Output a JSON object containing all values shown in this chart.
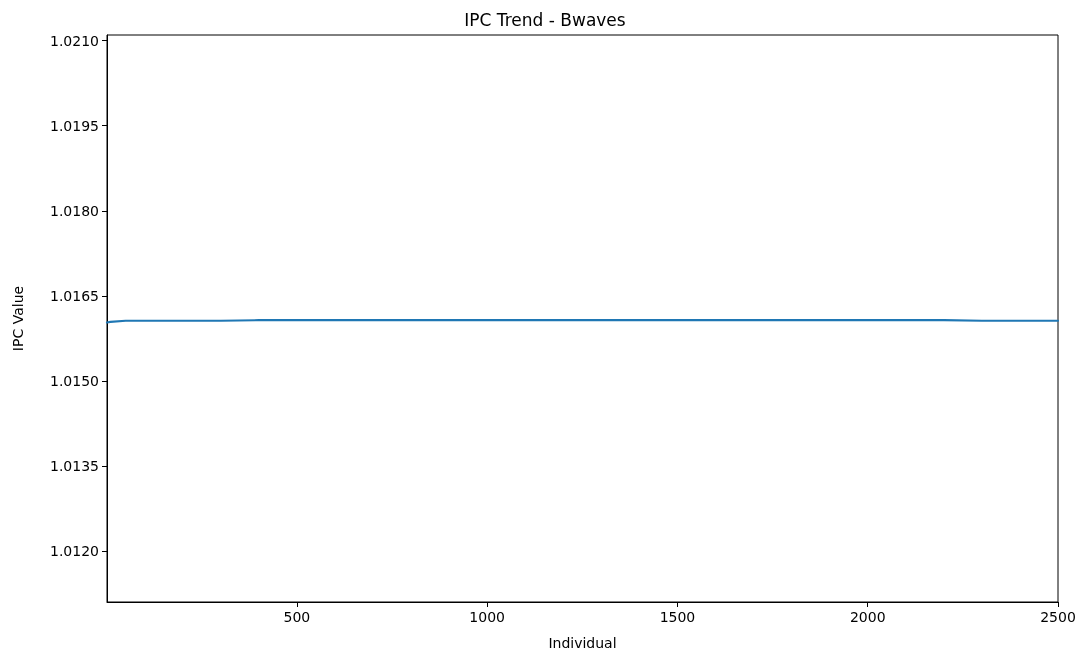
{
  "chart_data": {
    "type": "line",
    "title": "IPC Trend - Bwaves",
    "xlabel": "Individual",
    "ylabel": "IPC Value",
    "x": [
      1,
      10,
      50,
      100,
      200,
      300,
      400,
      500,
      600,
      700,
      800,
      900,
      1000,
      1100,
      1200,
      1300,
      1400,
      1500,
      1600,
      1700,
      1800,
      1900,
      2000,
      2100,
      2200,
      2300,
      2400,
      2500
    ],
    "series": [
      {
        "color": "#1f77b4",
        "values": [
          1.01603,
          1.01604,
          1.01606,
          1.01606,
          1.01606,
          1.01606,
          1.01607,
          1.01607,
          1.01607,
          1.01607,
          1.01607,
          1.01607,
          1.01607,
          1.01607,
          1.01607,
          1.01607,
          1.01607,
          1.01607,
          1.01607,
          1.01607,
          1.01607,
          1.01607,
          1.01607,
          1.01607,
          1.01607,
          1.01606,
          1.01606,
          1.01606
        ]
      }
    ],
    "xlim": [
      1,
      2500
    ],
    "xticks": [
      500,
      1000,
      1500,
      2000,
      2500
    ],
    "ylim": [
      1.0111,
      1.0211
    ],
    "yticks": [
      {
        "value": 1.012,
        "label": "1.0120"
      },
      {
        "value": 1.0135,
        "label": "1.0135"
      },
      {
        "value": 1.015,
        "label": "1.0150"
      },
      {
        "value": 1.0165,
        "label": "1.0165"
      },
      {
        "value": 1.018,
        "label": "1.0180"
      },
      {
        "value": 1.0195,
        "label": "1.0195"
      },
      {
        "value": 1.021,
        "label": "1.0210"
      }
    ],
    "grid": false,
    "marker": "none",
    "line_style": "solid"
  }
}
